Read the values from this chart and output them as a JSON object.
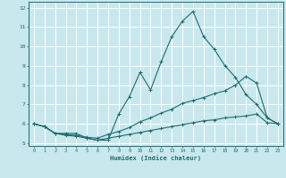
{
  "xlabel": "Humidex (Indice chaleur)",
  "xlim": [
    -0.5,
    23.5
  ],
  "ylim": [
    4.85,
    12.3
  ],
  "yticks": [
    5,
    6,
    7,
    8,
    9,
    10,
    11,
    12
  ],
  "xticks": [
    0,
    1,
    2,
    3,
    4,
    5,
    6,
    7,
    8,
    9,
    10,
    11,
    12,
    13,
    14,
    15,
    16,
    17,
    18,
    19,
    20,
    21,
    22,
    23
  ],
  "bg_color": "#c8e8ee",
  "line_color": "#1e6b6b",
  "grid_color": "#ffffff",
  "lines": [
    {
      "x": [
        0,
        1,
        2,
        3,
        4,
        5,
        6,
        7,
        8,
        9,
        10,
        11,
        12,
        13,
        14,
        15,
        16,
        17,
        18,
        19,
        20,
        21,
        22,
        23
      ],
      "y": [
        6.0,
        5.85,
        5.5,
        5.5,
        5.5,
        5.25,
        5.15,
        5.15,
        6.5,
        7.4,
        8.65,
        7.75,
        9.2,
        10.5,
        11.3,
        11.8,
        10.5,
        9.85,
        9.0,
        8.4,
        7.5,
        7.0,
        6.3,
        6.0
      ]
    },
    {
      "x": [
        0,
        1,
        2,
        3,
        4,
        5,
        6,
        7,
        8,
        9,
        10,
        11,
        12,
        13,
        14,
        15,
        16,
        17,
        18,
        19,
        20,
        21,
        22,
        23
      ],
      "y": [
        6.0,
        5.85,
        5.5,
        5.45,
        5.4,
        5.3,
        5.25,
        5.45,
        5.6,
        5.8,
        6.1,
        6.3,
        6.55,
        6.75,
        7.05,
        7.2,
        7.35,
        7.55,
        7.7,
        8.0,
        8.45,
        8.1,
        6.3,
        6.0
      ]
    },
    {
      "x": [
        0,
        1,
        2,
        3,
        4,
        5,
        6,
        7,
        8,
        9,
        10,
        11,
        12,
        13,
        14,
        15,
        16,
        17,
        18,
        19,
        20,
        21,
        22,
        23
      ],
      "y": [
        6.0,
        5.85,
        5.5,
        5.4,
        5.35,
        5.25,
        5.15,
        5.25,
        5.35,
        5.45,
        5.55,
        5.65,
        5.75,
        5.85,
        5.95,
        6.05,
        6.15,
        6.2,
        6.3,
        6.35,
        6.4,
        6.5,
        6.05,
        6.0
      ]
    }
  ]
}
